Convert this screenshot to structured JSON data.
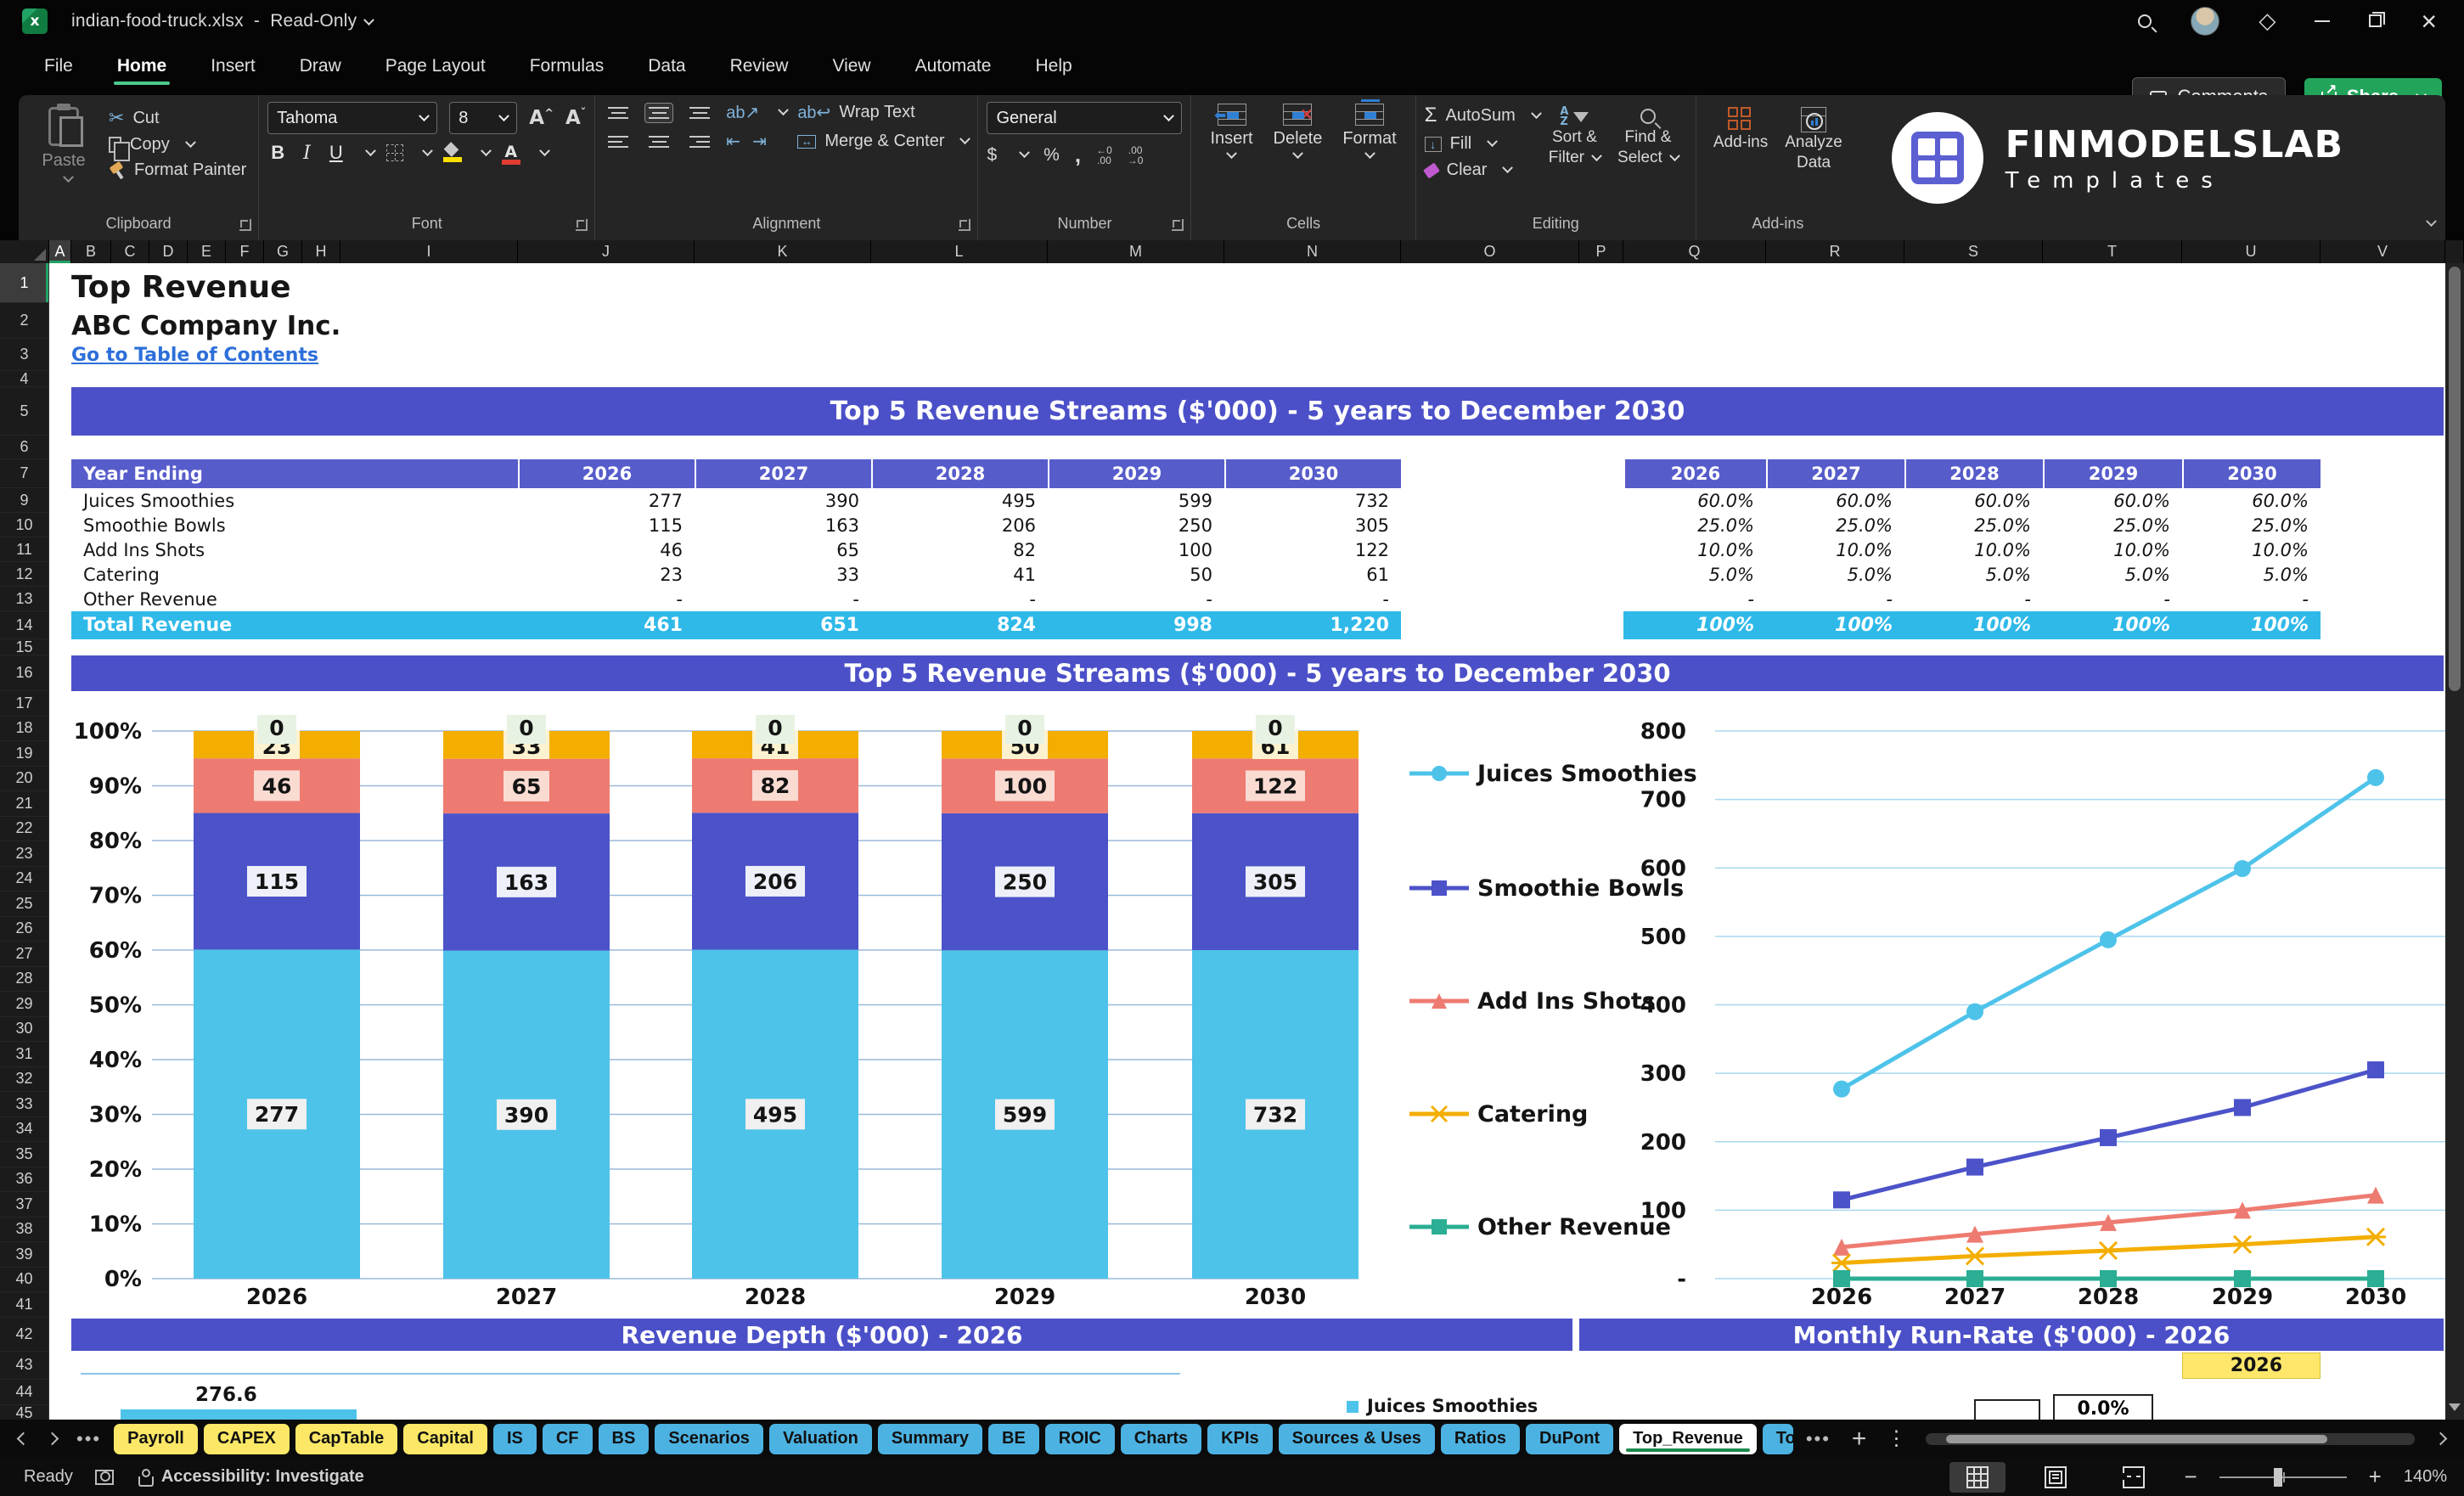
{
  "titlebar": {
    "filename": "indian-food-truck.xlsx",
    "separator": "-",
    "mode": "Read-Only"
  },
  "menu": {
    "items": [
      "File",
      "Home",
      "Insert",
      "Draw",
      "Page Layout",
      "Formulas",
      "Data",
      "Review",
      "View",
      "Automate",
      "Help"
    ],
    "active": "Home",
    "comments_label": "Comments",
    "share_label": "Share"
  },
  "ribbon": {
    "paste": "Paste",
    "cut": "Cut",
    "copy": "Copy",
    "format_painter": "Format Painter",
    "clipboard_group": "Clipboard",
    "font_name": "Tahoma",
    "font_size": "8",
    "font_group": "Font",
    "wrap_text": "Wrap Text",
    "merge_center": "Merge & Center",
    "alignment_group": "Alignment",
    "number_format": "General",
    "number_group": "Number",
    "insert": "Insert",
    "delete": "Delete",
    "format": "Format",
    "cells_group": "Cells",
    "autosum": "AutoSum",
    "fill": "Fill",
    "clear": "Clear",
    "sort1": "Sort &",
    "sort2": "Filter",
    "find1": "Find &",
    "find2": "Select",
    "editing_group": "Editing",
    "addins": "Add-ins",
    "analyze1": "Analyze",
    "analyze2": "Data",
    "addins_group": "Add-ins"
  },
  "brand": {
    "line1": "FINMODELSLAB",
    "line2": "Templates"
  },
  "sheet": {
    "title": "Top Revenue",
    "company": "ABC Company Inc.",
    "link": "Go to Table of Contents",
    "banner_top": "Top 5 Revenue Streams ($'000) - 5 years to December 2030",
    "banner_chart": "Top 5 Revenue Streams ($'000) - 5 years to December 2030",
    "banner_depth": "Revenue Depth ($'000) - 2026",
    "banner_runrate": "Monthly Run-Rate ($'000) - 2026",
    "runrate_year": "2026",
    "depth_value": "276.6",
    "depth_legend": "Juices Smoothies",
    "mini_box_value": "0.0%",
    "table": {
      "header": "Year Ending",
      "years": [
        "2026",
        "2027",
        "2028",
        "2029",
        "2030"
      ],
      "rows": [
        {
          "label": "Juices Smoothies",
          "values": [
            "277",
            "390",
            "495",
            "599",
            "732"
          ],
          "pcts": [
            "60.0%",
            "60.0%",
            "60.0%",
            "60.0%",
            "60.0%"
          ]
        },
        {
          "label": "Smoothie Bowls",
          "values": [
            "115",
            "163",
            "206",
            "250",
            "305"
          ],
          "pcts": [
            "25.0%",
            "25.0%",
            "25.0%",
            "25.0%",
            "25.0%"
          ]
        },
        {
          "label": "Add Ins Shots",
          "values": [
            "46",
            "65",
            "82",
            "100",
            "122"
          ],
          "pcts": [
            "10.0%",
            "10.0%",
            "10.0%",
            "10.0%",
            "10.0%"
          ]
        },
        {
          "label": "Catering",
          "values": [
            "23",
            "33",
            "41",
            "50",
            "61"
          ],
          "pcts": [
            "5.0%",
            "5.0%",
            "5.0%",
            "5.0%",
            "5.0%"
          ]
        },
        {
          "label": "Other Revenue",
          "values": [
            "-",
            "-",
            "-",
            "-",
            "-"
          ],
          "pcts": [
            "-",
            "-",
            "-",
            "-",
            "-"
          ]
        }
      ],
      "total": {
        "label": "Total Revenue",
        "values": [
          "461",
          "651",
          "824",
          "998",
          "1,220"
        ],
        "pcts": [
          "100%",
          "100%",
          "100%",
          "100%",
          "100%"
        ]
      }
    }
  },
  "chart_data": [
    {
      "type": "bar",
      "stacked": true,
      "percent": true,
      "title": "Top 5 Revenue Streams ($'000) - 5 years to December 2030",
      "categories": [
        "2026",
        "2027",
        "2028",
        "2029",
        "2030"
      ],
      "series": [
        {
          "name": "Juices Smoothies",
          "values": [
            277,
            390,
            495,
            599,
            732
          ],
          "color": "#4ec3e9",
          "label_bg": "#f0f0f0",
          "marker": "circle"
        },
        {
          "name": "Smoothie Bowls",
          "values": [
            115,
            163,
            206,
            250,
            305
          ],
          "color": "#4c53c9",
          "label_bg": "#eef0f9",
          "marker": "square"
        },
        {
          "name": "Add Ins Shots",
          "values": [
            46,
            65,
            82,
            100,
            122
          ],
          "color": "#ee7b71",
          "label_bg": "#fadbd2",
          "marker": "triangle"
        },
        {
          "name": "Catering",
          "values": [
            23,
            33,
            41,
            50,
            61
          ],
          "color": "#f3ae00",
          "label_bg": "#fdf2cf",
          "marker": "x"
        },
        {
          "name": "Other Revenue",
          "values": [
            0,
            0,
            0,
            0,
            0
          ],
          "color": "#2bae93",
          "label_bg": "#e7f2e3",
          "marker": "square"
        }
      ],
      "ylim": [
        0,
        100
      ],
      "ytick_step": 10,
      "ytick_suffix": "%",
      "grid": true,
      "legend_position": "right"
    },
    {
      "type": "line",
      "categories": [
        "2026",
        "2027",
        "2028",
        "2029",
        "2030"
      ],
      "series": [
        {
          "name": "Juices Smoothies",
          "values": [
            277,
            390,
            495,
            599,
            732
          ],
          "color": "#4ec3e9",
          "marker": "circle"
        },
        {
          "name": "Smoothie Bowls",
          "values": [
            115,
            163,
            206,
            250,
            305
          ],
          "color": "#4c53c9",
          "marker": "square"
        },
        {
          "name": "Add Ins Shots",
          "values": [
            46,
            65,
            82,
            100,
            122
          ],
          "color": "#ee7b71",
          "marker": "triangle"
        },
        {
          "name": "Catering",
          "values": [
            23,
            33,
            41,
            50,
            61
          ],
          "color": "#f3ae00",
          "marker": "x"
        },
        {
          "name": "Other Revenue",
          "values": [
            0,
            0,
            0,
            0,
            0
          ],
          "color": "#2bae93",
          "marker": "square"
        }
      ],
      "ylim": [
        0,
        800
      ],
      "ytick_step": 100,
      "zero_tick": "-",
      "grid": true
    }
  ],
  "grid": {
    "columns": [
      [
        "A",
        26
      ],
      [
        "B",
        47
      ],
      [
        "C",
        45
      ],
      [
        "D",
        45
      ],
      [
        "E",
        45
      ],
      [
        "F",
        45
      ],
      [
        "G",
        45
      ],
      [
        "H",
        45
      ],
      [
        "I",
        209
      ],
      [
        "J",
        208
      ],
      [
        "K",
        208
      ],
      [
        "L",
        208
      ],
      [
        "M",
        208
      ],
      [
        "N",
        208
      ],
      [
        "O",
        210
      ],
      [
        "P",
        52
      ],
      [
        "Q",
        168
      ],
      [
        "R",
        163
      ],
      [
        "S",
        163
      ],
      [
        "T",
        164
      ],
      [
        "U",
        163
      ],
      [
        "V",
        147
      ]
    ],
    "selected_column": "A",
    "rows": [
      [
        "1",
        47
      ],
      [
        "2",
        42
      ],
      [
        "3",
        38
      ],
      [
        "4",
        19
      ],
      [
        "5",
        57
      ],
      [
        "6",
        28
      ],
      [
        "7",
        34
      ],
      [
        "9",
        29
      ],
      [
        "10",
        29
      ],
      [
        "11",
        29
      ],
      [
        "12",
        29
      ],
      [
        "13",
        29
      ],
      [
        "14",
        33
      ],
      [
        "15",
        19
      ],
      [
        "16",
        42
      ],
      [
        "17",
        29.5
      ],
      [
        "18",
        29.5
      ],
      [
        "19",
        29.5
      ],
      [
        "20",
        29.5
      ],
      [
        "21",
        29.5
      ],
      [
        "22",
        29.5
      ],
      [
        "23",
        29.5
      ],
      [
        "24",
        29.5
      ],
      [
        "25",
        29.5
      ],
      [
        "26",
        29.5
      ],
      [
        "27",
        29.5
      ],
      [
        "28",
        29.5
      ],
      [
        "29",
        29.5
      ],
      [
        "30",
        29.5
      ],
      [
        "31",
        29.5
      ],
      [
        "32",
        29.5
      ],
      [
        "33",
        29.5
      ],
      [
        "34",
        29.5
      ],
      [
        "35",
        29.5
      ],
      [
        "36",
        29.5
      ],
      [
        "37",
        29.5
      ],
      [
        "38",
        29.5
      ],
      [
        "39",
        29.5
      ],
      [
        "40",
        29.5
      ],
      [
        "41",
        29.5
      ],
      [
        "42",
        40
      ],
      [
        "43",
        33
      ],
      [
        "44",
        30
      ],
      [
        "45",
        20
      ]
    ],
    "selected_row": "1"
  },
  "tabs": {
    "sheets": [
      {
        "label": "Payroll",
        "type": "yellow"
      },
      {
        "label": "CAPEX",
        "type": "yellow"
      },
      {
        "label": "CapTable",
        "type": "yellow"
      },
      {
        "label": "Capital",
        "type": "yellow"
      },
      {
        "label": "IS",
        "type": "blue"
      },
      {
        "label": "CF",
        "type": "blue"
      },
      {
        "label": "BS",
        "type": "blue"
      },
      {
        "label": "Scenarios",
        "type": "blue"
      },
      {
        "label": "Valuation",
        "type": "blue"
      },
      {
        "label": "Summary",
        "type": "blue"
      },
      {
        "label": "BE",
        "type": "blue"
      },
      {
        "label": "ROIC",
        "type": "blue"
      },
      {
        "label": "Charts",
        "type": "blue"
      },
      {
        "label": "KPIs",
        "type": "blue"
      },
      {
        "label": "Sources & Uses",
        "type": "blue"
      },
      {
        "label": "Ratios",
        "type": "blue"
      },
      {
        "label": "DuPont",
        "type": "blue"
      },
      {
        "label": "Top_Revenue",
        "type": "active"
      },
      {
        "label": "To",
        "type": "blue clip"
      }
    ]
  },
  "statusbar": {
    "ready": "Ready",
    "accessibility": "Accessibility: Investigate",
    "zoom": "140%"
  },
  "colors": {
    "banner": "#4b50c8",
    "table_header": "#575ccb",
    "total_row": "#2fb9e9",
    "link": "#2d6fd9",
    "tab_yellow": "#fce866",
    "tab_blue": "#4cb2e2",
    "active_tab_underline": "#1c8a4e",
    "share_green": "#23a45b",
    "highlight_yellow": "#ffe76b"
  }
}
